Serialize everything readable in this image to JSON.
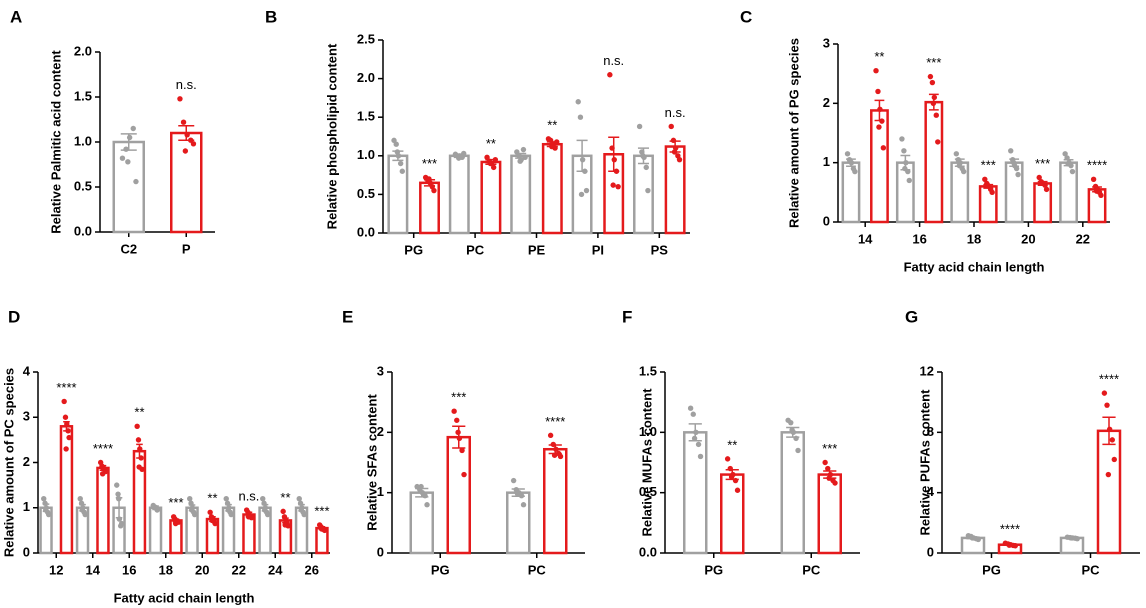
{
  "chart_data": [
    {
      "type": "bar",
      "panel": "A",
      "y_label": "Relative Palmitic acid content",
      "categories": [
        "C2",
        "P"
      ],
      "values": [
        1.0,
        1.1
      ],
      "errors": [
        0.09,
        0.08
      ],
      "colors": [
        "#a0a0a0",
        "#e41a1c"
      ],
      "points": [
        [
          0.82,
          0.92,
          1.05,
          1.15,
          0.56,
          0.78
        ],
        [
          1.48,
          1.22,
          1.08,
          1.02,
          0.98,
          0.9
        ]
      ],
      "annotations": [
        null,
        "n.s."
      ],
      "ylim": [
        0,
        2
      ],
      "yticks": [
        {
          "value": 0,
          "label": "0.0"
        },
        {
          "value": 0.5,
          "label": "0.5"
        },
        {
          "value": 1,
          "label": "1.0"
        },
        {
          "value": 1.5,
          "label": "1.5"
        },
        {
          "value": 2,
          "label": "2.0"
        }
      ]
    },
    {
      "type": "grouped_bar",
      "panel": "B",
      "y_label": "Relative phospholipid content",
      "categories": [
        "PG",
        "PC",
        "PE",
        "PI",
        "PS"
      ],
      "series": [
        {
          "color": "#a0a0a0",
          "values": [
            1.0,
            1.0,
            1.0,
            1.0,
            1.0
          ],
          "errors": [
            0.06,
            0.02,
            0.03,
            0.2,
            0.1
          ],
          "points": [
            [
              1.2,
              1.15,
              1.0,
              0.9,
              0.8,
              1.05
            ],
            [
              1.02,
              1.0,
              1.0,
              0.98,
              1.03,
              0.97
            ],
            [
              1.05,
              1.0,
              0.95,
              1.08,
              0.98,
              0.93
            ],
            [
              1.7,
              1.5,
              0.95,
              0.8,
              0.55,
              0.5
            ],
            [
              1.38,
              1.05,
              0.98,
              0.85,
              0.55,
              1.0
            ]
          ]
        },
        {
          "color": "#e41a1c",
          "values": [
            0.65,
            0.92,
            1.15,
            1.02,
            1.12
          ],
          "errors": [
            0.04,
            0.03,
            0.03,
            0.22,
            0.07
          ],
          "points": [
            [
              0.72,
              0.68,
              0.65,
              0.6,
              0.55,
              0.7
            ],
            [
              0.98,
              0.93,
              0.9,
              0.85,
              0.95,
              0.9
            ],
            [
              1.22,
              1.2,
              1.15,
              1.1,
              1.18,
              1.12
            ],
            [
              2.05,
              1.1,
              0.95,
              0.8,
              0.6,
              0.62
            ],
            [
              1.38,
              1.2,
              1.1,
              1.0,
              0.95,
              1.05
            ]
          ]
        }
      ],
      "annotations": [
        "***",
        "**",
        "**",
        "n.s.",
        "n.s."
      ],
      "ylim": [
        0,
        2.5
      ],
      "yticks": [
        {
          "value": 0,
          "label": "0.0"
        },
        {
          "value": 0.5,
          "label": "0.5"
        },
        {
          "value": 1,
          "label": "1.0"
        },
        {
          "value": 1.5,
          "label": "1.5"
        },
        {
          "value": 2,
          "label": "2.0"
        },
        {
          "value": 2.5,
          "label": "2.5"
        }
      ]
    },
    {
      "type": "grouped_bar",
      "panel": "C",
      "y_label": "Relative amount of PG species",
      "x_label": "Fatty acid chain length",
      "categories": [
        "14",
        "16",
        "18",
        "20",
        "22"
      ],
      "series": [
        {
          "color": "#a0a0a0",
          "values": [
            1.0,
            1.0,
            1.0,
            1.0,
            1.0
          ],
          "errors": [
            0.06,
            0.12,
            0.06,
            0.06,
            0.05
          ],
          "points": [
            [
              1.15,
              1.05,
              1.0,
              0.9,
              0.85,
              1.02
            ],
            [
              1.4,
              1.2,
              1.0,
              0.85,
              0.7,
              0.9
            ],
            [
              1.15,
              1.05,
              1.0,
              0.9,
              0.85,
              0.95
            ],
            [
              1.2,
              1.05,
              0.95,
              0.9,
              0.8,
              1.0
            ],
            [
              1.15,
              1.08,
              1.0,
              0.95,
              0.85,
              0.98
            ]
          ]
        },
        {
          "color": "#e41a1c",
          "values": [
            1.88,
            2.02,
            0.6,
            0.65,
            0.55
          ],
          "errors": [
            0.17,
            0.13,
            0.03,
            0.03,
            0.04
          ],
          "points": [
            [
              2.55,
              2.2,
              1.9,
              1.7,
              1.25,
              1.6
            ],
            [
              2.45,
              2.35,
              2.1,
              1.8,
              1.35,
              2.0
            ],
            [
              0.72,
              0.65,
              0.6,
              0.55,
              0.5,
              0.62
            ],
            [
              0.75,
              0.68,
              0.65,
              0.62,
              0.55,
              0.66
            ],
            [
              0.72,
              0.6,
              0.55,
              0.5,
              0.45,
              0.52
            ]
          ]
        }
      ],
      "annotations": [
        "**",
        "***",
        "***",
        "***",
        "****"
      ],
      "ylim": [
        0,
        3
      ],
      "yticks": [
        0,
        1,
        2,
        3
      ]
    },
    {
      "type": "grouped_bar",
      "panel": "D",
      "y_label": "Relative amount of PC species",
      "x_label": "Fatty acid chain length",
      "categories": [
        "12",
        "14",
        "16",
        "18",
        "20",
        "22",
        "24",
        "26"
      ],
      "series": [
        {
          "color": "#a0a0a0",
          "values": [
            1.0,
            1.0,
            1.0,
            1.0,
            1.0,
            1.0,
            1.0,
            1.0
          ],
          "errors": [
            0.08,
            0.07,
            0.22,
            0.04,
            0.06,
            0.07,
            0.07,
            0.07
          ],
          "points": [
            [
              1.2,
              1.1,
              1.0,
              0.9,
              0.85,
              0.95
            ],
            [
              1.2,
              1.1,
              1.0,
              0.9,
              0.85,
              0.95
            ],
            [
              1.5,
              1.3,
              0.75,
              0.6,
              0.65,
              1.2
            ],
            [
              1.05,
              1.02,
              1.0,
              0.95,
              0.97,
              1.0
            ],
            [
              1.2,
              1.1,
              1.0,
              0.9,
              0.85,
              0.95
            ],
            [
              1.2,
              1.1,
              1.0,
              0.9,
              0.85,
              0.95
            ],
            [
              1.2,
              1.1,
              1.0,
              0.9,
              0.85,
              0.95
            ],
            [
              1.2,
              1.1,
              1.0,
              0.9,
              0.85,
              0.95
            ]
          ]
        },
        {
          "color": "#e41a1c",
          "values": [
            2.8,
            1.88,
            2.25,
            0.72,
            0.75,
            0.85,
            0.72,
            0.55
          ],
          "errors": [
            0.1,
            0.05,
            0.15,
            0.03,
            0.05,
            0.05,
            0.05,
            0.03
          ],
          "points": [
            [
              3.35,
              3.0,
              2.85,
              2.7,
              2.55,
              2.3
            ],
            [
              2.0,
              1.92,
              1.88,
              1.85,
              1.8,
              1.75
            ],
            [
              2.8,
              2.5,
              2.3,
              2.1,
              1.85,
              1.9
            ],
            [
              0.8,
              0.75,
              0.72,
              0.7,
              0.68,
              0.65
            ],
            [
              0.9,
              0.8,
              0.75,
              0.7,
              0.65,
              0.72
            ],
            [
              0.95,
              0.9,
              0.85,
              0.82,
              0.78,
              0.8
            ],
            [
              0.92,
              0.8,
              0.72,
              0.65,
              0.6,
              0.62
            ],
            [
              0.62,
              0.58,
              0.55,
              0.52,
              0.5,
              0.53
            ]
          ]
        }
      ],
      "annotations": [
        "****",
        "****",
        "**",
        "***",
        "**",
        "n.s.",
        "**",
        "***"
      ],
      "ylim": [
        0,
        4
      ],
      "yticks": [
        0,
        1,
        2,
        3,
        4
      ]
    },
    {
      "type": "grouped_bar",
      "panel": "E",
      "y_label": "Relative SFAs content",
      "categories": [
        "PG",
        "PC"
      ],
      "series": [
        {
          "color": "#a0a0a0",
          "values": [
            1.0,
            1.0
          ],
          "errors": [
            0.07,
            0.06
          ],
          "points": [
            [
              1.1,
              1.05,
              1.0,
              0.95,
              0.8,
              1.1
            ],
            [
              1.2,
              1.05,
              1.0,
              0.95,
              0.8,
              0.98
            ]
          ]
        },
        {
          "color": "#e41a1c",
          "values": [
            1.92,
            1.72
          ],
          "errors": [
            0.18,
            0.07
          ],
          "points": [
            [
              2.35,
              2.2,
              1.9,
              1.7,
              1.3,
              2.0
            ],
            [
              1.95,
              1.8,
              1.72,
              1.65,
              1.6,
              1.62
            ]
          ]
        }
      ],
      "annotations": [
        "***",
        "****"
      ],
      "ylim": [
        0,
        3
      ],
      "yticks": [
        0,
        1,
        2,
        3
      ]
    },
    {
      "type": "grouped_bar",
      "panel": "F",
      "y_label": "Relative MUFAs content",
      "categories": [
        "PG",
        "PC"
      ],
      "series": [
        {
          "color": "#a0a0a0",
          "values": [
            1.0,
            1.0
          ],
          "errors": [
            0.07,
            0.04
          ],
          "points": [
            [
              1.2,
              1.15,
              1.0,
              0.9,
              0.8,
              0.95
            ],
            [
              1.1,
              1.08,
              1.0,
              0.95,
              0.85,
              1.02
            ]
          ]
        },
        {
          "color": "#e41a1c",
          "values": [
            0.65,
            0.65
          ],
          "errors": [
            0.04,
            0.03
          ],
          "points": [
            [
              0.78,
              0.7,
              0.65,
              0.6,
              0.52,
              0.63
            ],
            [
              0.75,
              0.7,
              0.65,
              0.6,
              0.58,
              0.62
            ]
          ]
        }
      ],
      "annotations": [
        "**",
        "***"
      ],
      "ylim": [
        0,
        1.5
      ],
      "yticks": [
        {
          "value": 0,
          "label": "0.0"
        },
        {
          "value": 0.5,
          "label": "0.5"
        },
        {
          "value": 1,
          "label": "1.0"
        },
        {
          "value": 1.5,
          "label": "1.5"
        }
      ]
    },
    {
      "type": "grouped_bar",
      "panel": "G",
      "y_label": "Relative PUFAs content",
      "categories": [
        "PG",
        "PC"
      ],
      "series": [
        {
          "color": "#a0a0a0",
          "values": [
            1.0,
            1.0
          ],
          "errors": [
            0.05,
            0.03
          ],
          "points": [
            [
              1.15,
              1.1,
              1.0,
              0.95,
              0.9,
              1.0
            ],
            [
              1.05,
              1.02,
              1.0,
              0.98,
              0.95,
              1.0
            ]
          ]
        },
        {
          "color": "#e41a1c",
          "values": [
            0.55,
            8.1
          ],
          "errors": [
            0.04,
            0.9
          ],
          "points": [
            [
              0.65,
              0.6,
              0.55,
              0.5,
              0.48,
              0.52
            ],
            [
              10.6,
              9.8,
              8.2,
              7.5,
              6.2,
              5.2
            ]
          ]
        }
      ],
      "annotations": [
        "****",
        "****"
      ],
      "ylim": [
        0,
        12
      ],
      "yticks": [
        0,
        4,
        8,
        12
      ]
    }
  ]
}
